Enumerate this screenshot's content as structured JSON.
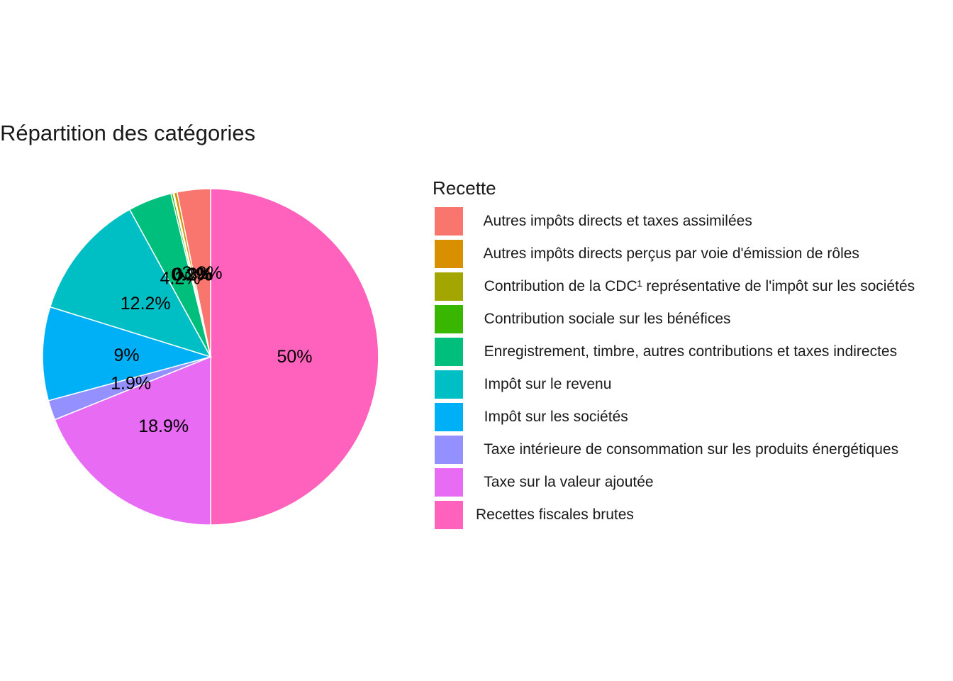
{
  "chart_data": {
    "type": "pie",
    "title": "Répartition des catégories",
    "legend_title": "Recette",
    "legend_position": "right",
    "slices": [
      {
        "name": "  Autres impôts directs et taxes assimilées",
        "value": 3.2,
        "label": "3.2%",
        "color": "#F8766D"
      },
      {
        "name": "  Autres impôts directs perçus par voie d'émission de rôles",
        "value": 0.3,
        "label": "0.3%",
        "color": "#D89000"
      },
      {
        "name": "  Contribution de la CDC¹ représentative de l'impôt sur les sociétés",
        "value": 0.1,
        "label": "0.1%",
        "color": "#A3A500"
      },
      {
        "name": "  Contribution sociale sur les bénéfices",
        "value": 0.2,
        "label": "0.2%",
        "color": "#39B600"
      },
      {
        "name": "  Enregistrement, timbre, autres contributions et taxes indirectes",
        "value": 4.2,
        "label": "4.2%",
        "color": "#00BF7D"
      },
      {
        "name": "  Impôt sur le revenu",
        "value": 12.2,
        "label": "12.2%",
        "color": "#00BFC4"
      },
      {
        "name": "  Impôt sur les sociétés",
        "value": 9,
        "label": "9%",
        "color": "#00B0F6"
      },
      {
        "name": "  Taxe intérieure de consommation sur les produits énergétiques",
        "value": 1.9,
        "label": "1.9%",
        "color": "#9590FF"
      },
      {
        "name": "  Taxe sur la valeur ajoutée",
        "value": 18.9,
        "label": "18.9%",
        "color": "#E76BF3"
      },
      {
        "name": "Recettes fiscales brutes",
        "value": 50,
        "label": "50%",
        "color": "#FF62BC"
      }
    ]
  }
}
